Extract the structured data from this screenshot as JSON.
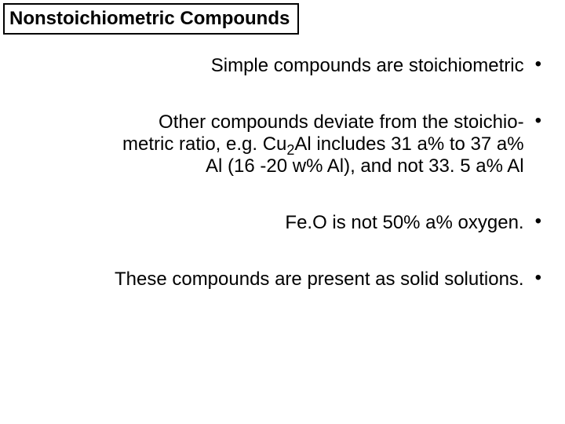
{
  "title": "Nonstoichiometric Compounds",
  "title_fontsize": 24,
  "body_fontsize": 24,
  "text_color": "#000000",
  "background_color": "#ffffff",
  "bullet_char": "•",
  "bullets": [
    {
      "text": "Simple compounds are stoichiometric"
    },
    {
      "text": "Other compounds deviate from the stoichio-\nmetric ratio, e.g. Cu₂Al includes 31 a% to 37 a%\nAl (16 -20 w% Al), and not 33. 5 a% Al"
    },
    {
      "text": "Fe.O is not 50% a% oxygen."
    },
    {
      "text": "These compounds are present as solid solutions."
    }
  ],
  "layout": {
    "slide_width": 720,
    "slide_height": 540,
    "text_align": "right",
    "bullet_side": "right"
  }
}
